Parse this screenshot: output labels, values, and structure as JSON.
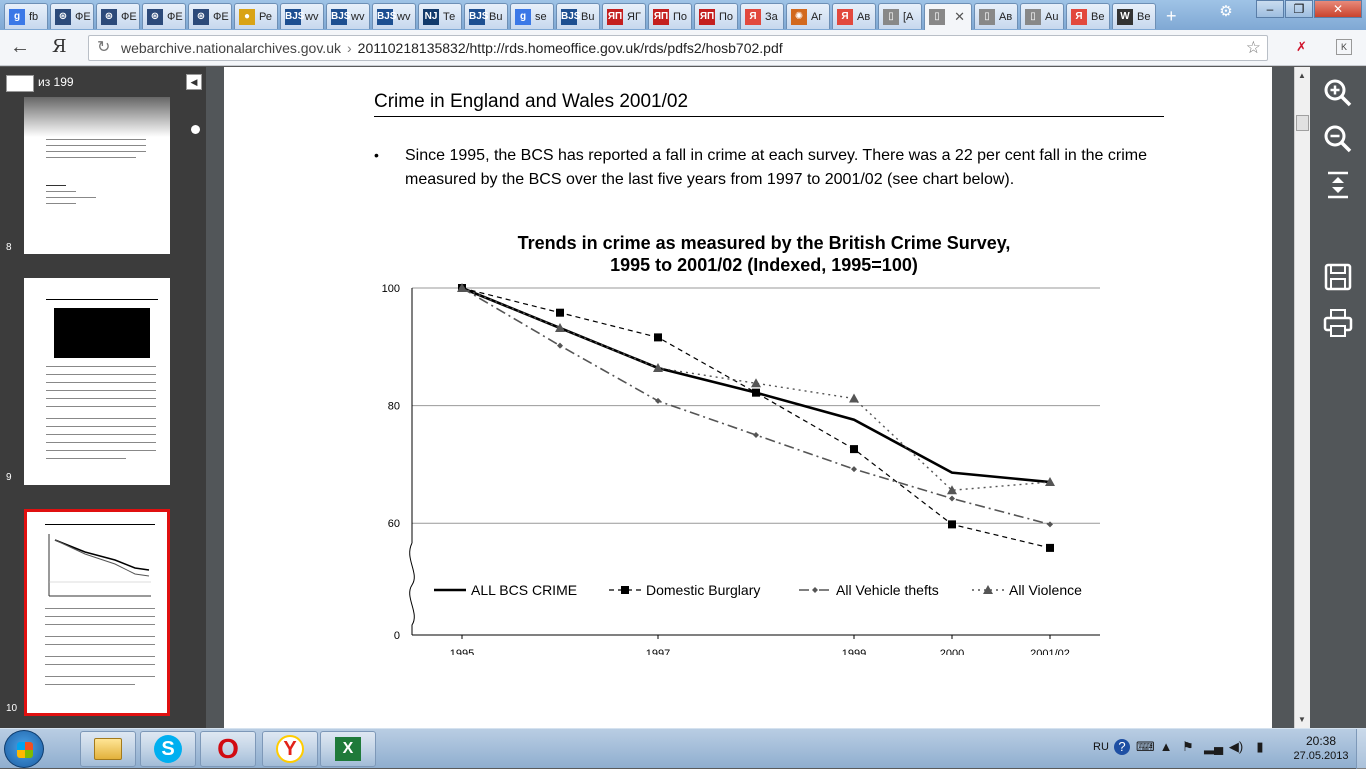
{
  "tabs": [
    {
      "icon": "g",
      "label": "fb",
      "color": "#3b78e7"
    },
    {
      "icon": "⊛",
      "label": "ФЕ",
      "color": "#2c4a7a"
    },
    {
      "icon": "⊛",
      "label": "ФЕ",
      "color": "#2c4a7a"
    },
    {
      "icon": "⊛",
      "label": "ФЕ",
      "color": "#2c4a7a"
    },
    {
      "icon": "⊛",
      "label": "ФЕ",
      "color": "#2c4a7a"
    },
    {
      "icon": "●",
      "label": "Ре",
      "color": "#d9a316"
    },
    {
      "icon": "BJS",
      "label": "wv",
      "color": "#1d4f91"
    },
    {
      "icon": "BJS",
      "label": "wv",
      "color": "#1d4f91"
    },
    {
      "icon": "BJS",
      "label": "wv",
      "color": "#1d4f91"
    },
    {
      "icon": "NJ",
      "label": "Те",
      "color": "#123a6b"
    },
    {
      "icon": "BJS",
      "label": "Bu",
      "color": "#1d4f91"
    },
    {
      "icon": "g",
      "label": "se",
      "color": "#3b78e7"
    },
    {
      "icon": "BJS",
      "label": "Bu",
      "color": "#1d4f91"
    },
    {
      "icon": "ЯП",
      "label": "ЯГ",
      "color": "#c41f1f"
    },
    {
      "icon": "ЯП",
      "label": "По",
      "color": "#c41f1f"
    },
    {
      "icon": "ЯП",
      "label": "По",
      "color": "#c41f1f"
    },
    {
      "icon": "Я",
      "label": "За",
      "color": "#e2483d"
    },
    {
      "icon": "✺",
      "label": "Аг",
      "color": "#d2691e"
    },
    {
      "icon": "Я",
      "label": "Ав",
      "color": "#e2483d"
    },
    {
      "icon": "▯",
      "label": "[А",
      "color": "#888888"
    },
    {
      "icon": "▯",
      "label": "",
      "color": "#888888",
      "active": true
    },
    {
      "icon": "▯",
      "label": "Ав",
      "color": "#888888"
    },
    {
      "icon": "▯",
      "label": "Au",
      "color": "#888888"
    },
    {
      "icon": "Я",
      "label": "Ве",
      "color": "#e2483d"
    },
    {
      "icon": "W",
      "label": "Ве",
      "color": "#333333"
    }
  ],
  "window_controls": {
    "minimize": "–",
    "maximize": "❐",
    "close": "✕"
  },
  "tab_close": "✕",
  "new_tab": "+",
  "address": {
    "host": "webarchive.nationalarchives.gov.uk",
    "separator": "›",
    "path": "20110218135832/http://rds.homeoffice.gov.uk/rds/pdfs2/hosb702.pdf",
    "browser_logo": "Я"
  },
  "pdf": {
    "page_input": "",
    "page_total": "из 199",
    "thumbnails": [
      {
        "number": "8"
      },
      {
        "number": "9"
      },
      {
        "number": "10",
        "selected": true
      }
    ]
  },
  "document": {
    "title": "Crime in England and Wales 2001/02",
    "bullet": "•",
    "paragraph": "Since 1995, the BCS has reported a fall in crime at each survey. There was a 22 per cent fall in the crime measured by the BCS over the last five years from 1997 to 2001/02 (see chart below)."
  },
  "chart_data": {
    "type": "line",
    "title": "Trends in crime as measured by the British Crime Survey,",
    "subtitle": "1995 to 2001/02 (Indexed, 1995=100)",
    "x": [
      1995,
      1996,
      1997,
      1998,
      1999,
      2000,
      2001
    ],
    "xtick_labels": [
      "1995",
      "1997",
      "1999",
      "2000",
      "2001/02"
    ],
    "xtick_values": [
      1995,
      1997,
      1999,
      2000,
      2001
    ],
    "ytick_labels": [
      "100",
      "80",
      "60",
      "0"
    ],
    "ytick_values": [
      100,
      80,
      60,
      0
    ],
    "ylim": [
      0,
      100
    ],
    "axis_break": true,
    "grid": true,
    "series": [
      {
        "name": "ALL BCS CRIME",
        "values": [
          100,
          93.2,
          86.4,
          82.2,
          77.6,
          68.6,
          67.0
        ],
        "color": "#000000"
      },
      {
        "name": "Domestic Burglary",
        "values": [
          100,
          95.8,
          91.6,
          82.2,
          72.6,
          59.8,
          55.8
        ],
        "color": "#000000"
      },
      {
        "name": "All Vehicle thefts",
        "values": [
          100,
          90.2,
          80.8,
          75.0,
          69.2,
          64.2,
          59.8
        ],
        "color": "#555555"
      },
      {
        "name": "All Violence",
        "values": [
          100,
          93.2,
          86.4,
          83.8,
          81.2,
          65.6,
          67.0
        ],
        "color": "#555555"
      }
    ]
  },
  "taskbar": {
    "apps": [
      "Explorer",
      "Skype",
      "Opera",
      "Yandex Browser",
      "Excel"
    ],
    "lang": "RU",
    "time": "20:38",
    "date": "27.05.2013"
  }
}
